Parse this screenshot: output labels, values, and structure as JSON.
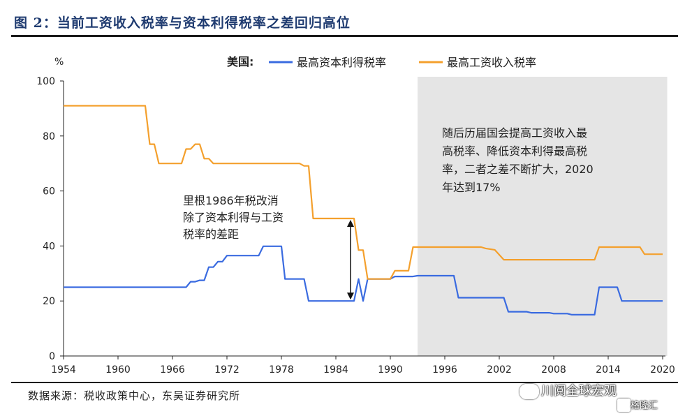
{
  "figure": {
    "title": "图 2：当前工资收入税率与资本利得税率之差回归高位",
    "source": "数据来源：税收政策中心，东吴证券研究所",
    "watermark": "川阅全球宏观",
    "watermark2": "格隆汇"
  },
  "chart_data": {
    "type": "line",
    "ylabel": "%",
    "ylim": [
      0,
      100
    ],
    "yticks": [
      0,
      20,
      40,
      60,
      80,
      100
    ],
    "xlim": [
      1954,
      2020
    ],
    "xticks": [
      1954,
      1960,
      1966,
      1972,
      1978,
      1984,
      1990,
      1996,
      2002,
      2008,
      2014,
      2020
    ],
    "legend_prefix": "美国:",
    "series": [
      {
        "name": "最高资本利得税率",
        "color": "#3a6be0",
        "points": [
          [
            1954,
            25
          ],
          [
            1967,
            25
          ],
          [
            1967.5,
            25
          ],
          [
            1968,
            27
          ],
          [
            1968.5,
            27
          ],
          [
            1969,
            27.5
          ],
          [
            1969.5,
            27.5
          ],
          [
            1970,
            32.3
          ],
          [
            1970.5,
            32.3
          ],
          [
            1971,
            34.3
          ],
          [
            1971.5,
            34.3
          ],
          [
            1972,
            36.5
          ],
          [
            1975.5,
            36.5
          ],
          [
            1976,
            39.9
          ],
          [
            1978,
            39.9
          ],
          [
            1978.4,
            28
          ],
          [
            1980.5,
            28
          ],
          [
            1981,
            20
          ],
          [
            1986,
            20
          ],
          [
            1986.5,
            28
          ],
          [
            1987,
            20
          ],
          [
            1987.5,
            28
          ],
          [
            1990,
            28
          ],
          [
            1990.5,
            28.9
          ],
          [
            1992.5,
            28.9
          ],
          [
            1993,
            29.2
          ],
          [
            1997,
            29.2
          ],
          [
            1997.5,
            21.2
          ],
          [
            2002.5,
            21.2
          ],
          [
            2003,
            16.1
          ],
          [
            2005,
            16.1
          ],
          [
            2005.5,
            15.7
          ],
          [
            2007.5,
            15.7
          ],
          [
            2008,
            15.4
          ],
          [
            2009.5,
            15.4
          ],
          [
            2010,
            15
          ],
          [
            2012.5,
            15
          ],
          [
            2013,
            25
          ],
          [
            2015,
            25
          ],
          [
            2015.5,
            20
          ],
          [
            2020,
            20
          ]
        ]
      },
      {
        "name": "最高工资收入税率",
        "color": "#f4a02d",
        "points": [
          [
            1954,
            91
          ],
          [
            1963,
            91
          ],
          [
            1963.5,
            77
          ],
          [
            1964,
            77
          ],
          [
            1964.5,
            70
          ],
          [
            1967,
            70
          ],
          [
            1967.5,
            75.25
          ],
          [
            1968,
            75.25
          ],
          [
            1968.5,
            77
          ],
          [
            1969,
            77
          ],
          [
            1969.5,
            71.75
          ],
          [
            1970,
            71.75
          ],
          [
            1970.5,
            70
          ],
          [
            1980,
            70
          ],
          [
            1980.5,
            69.1
          ],
          [
            1981,
            69.1
          ],
          [
            1981.5,
            50
          ],
          [
            1986,
            50
          ],
          [
            1986.5,
            38.5
          ],
          [
            1987,
            38.5
          ],
          [
            1987.5,
            28
          ],
          [
            1990,
            28
          ],
          [
            1990.5,
            31
          ],
          [
            1992,
            31
          ],
          [
            1992.5,
            39.6
          ],
          [
            2000,
            39.6
          ],
          [
            2000.5,
            39.1
          ],
          [
            2001.5,
            38.6
          ],
          [
            2002.5,
            35
          ],
          [
            2012.5,
            35
          ],
          [
            2013,
            39.6
          ],
          [
            2017.5,
            39.6
          ],
          [
            2018,
            37
          ],
          [
            2020,
            37
          ]
        ]
      }
    ],
    "shaded_region": {
      "from": 1993,
      "to": 2020.5
    },
    "annotations": [
      {
        "lines": [
          "里根1986年税改消",
          "除了资本利得与工资",
          "税率的差距"
        ],
        "arrow_at": 1986,
        "arrow_from": 20,
        "arrow_to": 50
      },
      {
        "lines": [
          "随后历届国会提高工资收入最",
          "高税率、降低资本利得最高税",
          "率，二者之差不断扩大，2020",
          "年达到17%"
        ]
      }
    ]
  }
}
